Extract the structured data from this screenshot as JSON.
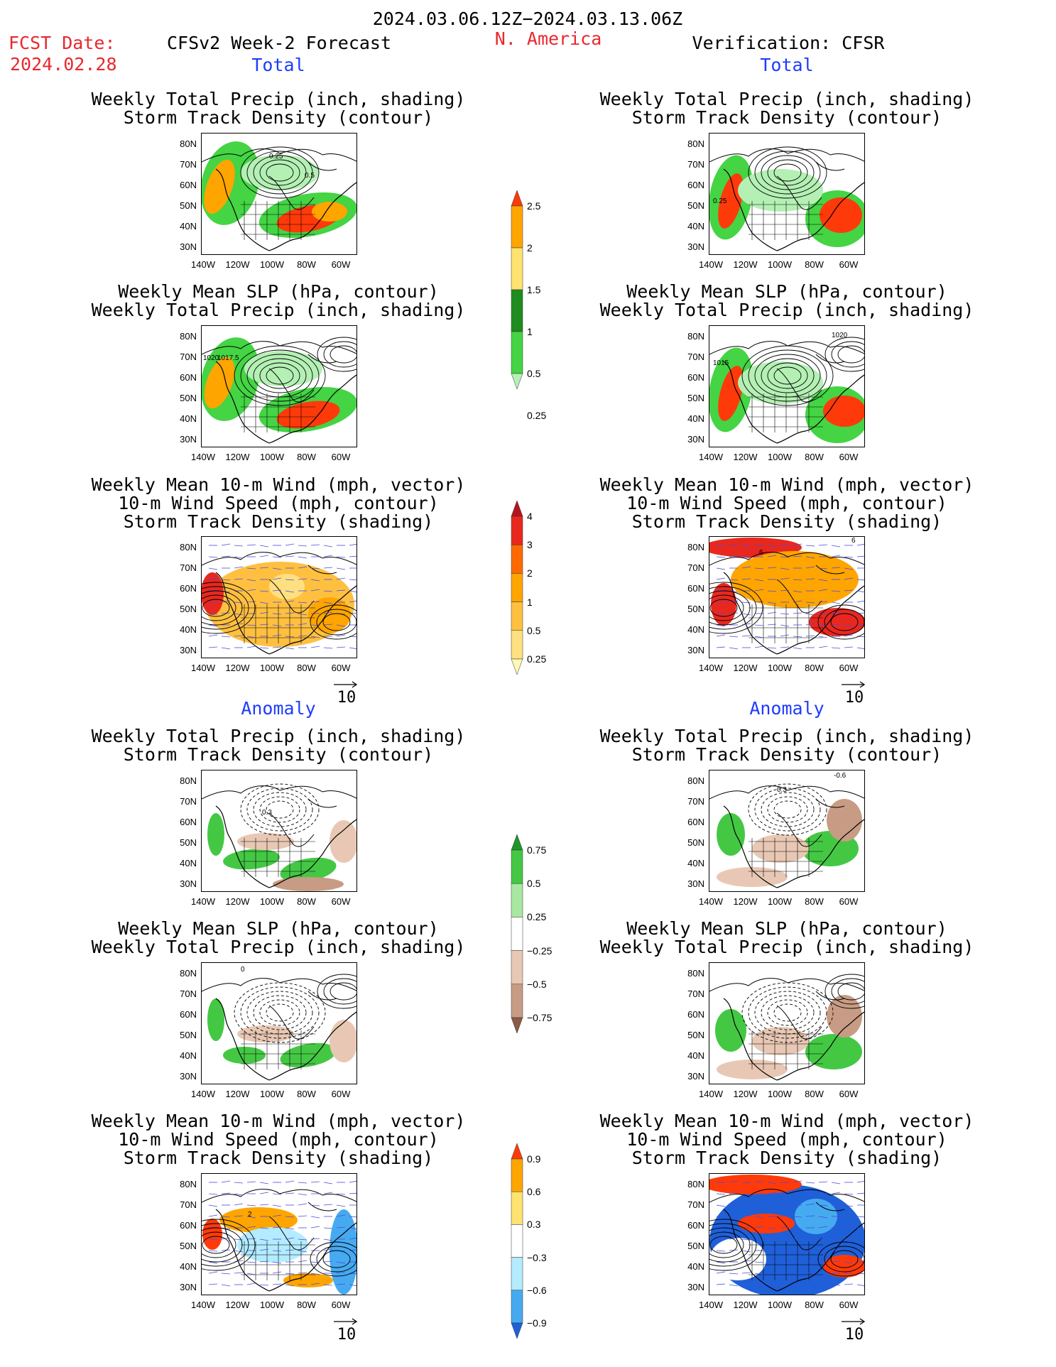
{
  "header": {
    "period": "2024.03.06.12Z−2024.03.13.06Z",
    "fcst_label": "FCST Date:",
    "fcst_date": "2024.02.28",
    "model": "CFSv2 Week-2 Forecast",
    "region": "N. America",
    "verification": "Verification: CFSR"
  },
  "sections": {
    "total": "Total",
    "anomaly": "Anomaly"
  },
  "panel_titles": {
    "precip_storm": [
      "Weekly Total Precip (inch, shading)",
      "Storm Track Density (contour)"
    ],
    "slp_precip": [
      "Weekly Mean SLP (hPa, contour)",
      "Weekly Total Precip (inch, shading)"
    ],
    "wind_storm": [
      "Weekly Mean 10-m Wind (mph, vector)",
      "10-m Wind Speed (mph, contour)",
      "Storm Track Density (shading)"
    ]
  },
  "axes": {
    "lat": [
      "80N",
      "70N",
      "60N",
      "50N",
      "40N",
      "30N"
    ],
    "lon": [
      "140W",
      "120W",
      "100W",
      "80W",
      "60W"
    ]
  },
  "vector_ref": "10",
  "contour_labels": {
    "p1_left": [
      "0.25",
      "0.5"
    ],
    "p1_right": [
      "0.25"
    ],
    "p2_left": [
      "1020",
      "1017.5"
    ],
    "p2_right": [
      "1020",
      "1015"
    ],
    "p3_right": [
      "6",
      "6"
    ],
    "p4_left": [
      "0.3"
    ],
    "p4_right": [
      "0.3",
      "-0.6"
    ],
    "p5_left": [
      "0"
    ],
    "p6_left": [
      "2"
    ]
  },
  "colorbars": {
    "precip_total": {
      "labels": [
        "2.5",
        "2",
        "1.5",
        "1",
        "0.5",
        "0.25"
      ],
      "colors": [
        "#ff3a0a",
        "#ffa500",
        "#ffe270",
        "#1f8c1f",
        "#44d444",
        "#b4f0b4"
      ]
    },
    "storm_total": {
      "labels": [
        "4",
        "3",
        "2",
        "1",
        "0.5",
        "0.25"
      ],
      "colors": [
        "#b4141e",
        "#e8281e",
        "#ff6a00",
        "#ffa500",
        "#ffc040",
        "#ffe080",
        "#fff7b8"
      ]
    },
    "precip_anom": {
      "labels": [
        "0.75",
        "0.5",
        "0.25",
        "−0.25",
        "−0.5",
        "−0.75"
      ],
      "colors": [
        "#1e9628",
        "#44c844",
        "#a8e8a0",
        "#ffffff",
        "#e8c8b4",
        "#c89c84",
        "#8c5a46"
      ]
    },
    "storm_anom": {
      "labels": [
        "0.9",
        "0.6",
        "0.3",
        "−0.3",
        "−0.6",
        "−0.9"
      ],
      "colors": [
        "#ff3a0a",
        "#ffa500",
        "#ffe270",
        "#ffffff",
        "#b4ecff",
        "#46aaf0",
        "#1e60d8"
      ]
    }
  }
}
